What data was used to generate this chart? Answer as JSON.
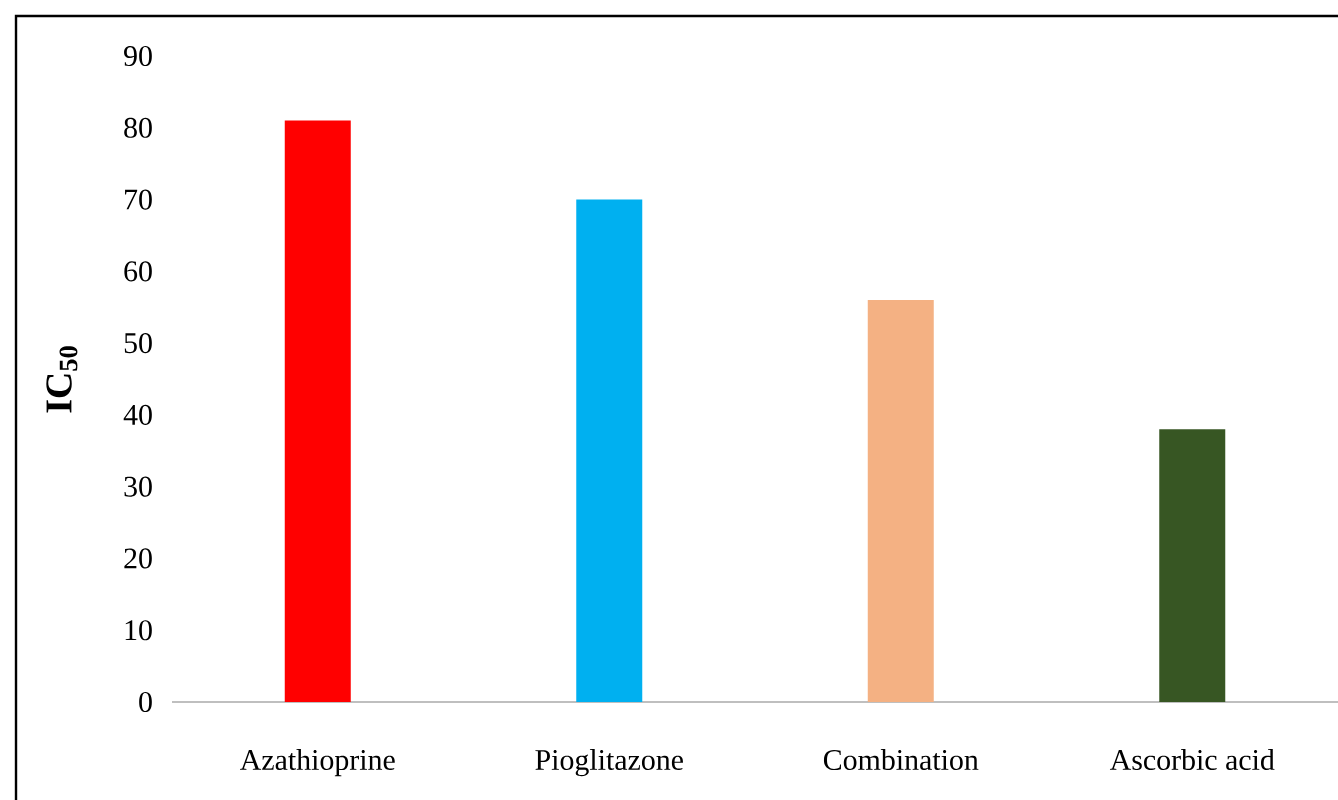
{
  "chart_data": {
    "type": "bar",
    "ylabel": "IC$_{50}$",
    "categories": [
      "Azathioprine",
      "Pioglitazone",
      "Combination",
      "Ascorbic acid"
    ],
    "values": [
      81,
      70,
      56,
      38
    ],
    "colors": [
      "#ff0000",
      "#00b0f0",
      "#f4b183",
      "#375623"
    ],
    "ylim": [
      0,
      90
    ],
    "yticks": [
      0,
      10,
      20,
      30,
      40,
      50,
      60,
      70,
      80,
      90
    ],
    "grid": false
  }
}
